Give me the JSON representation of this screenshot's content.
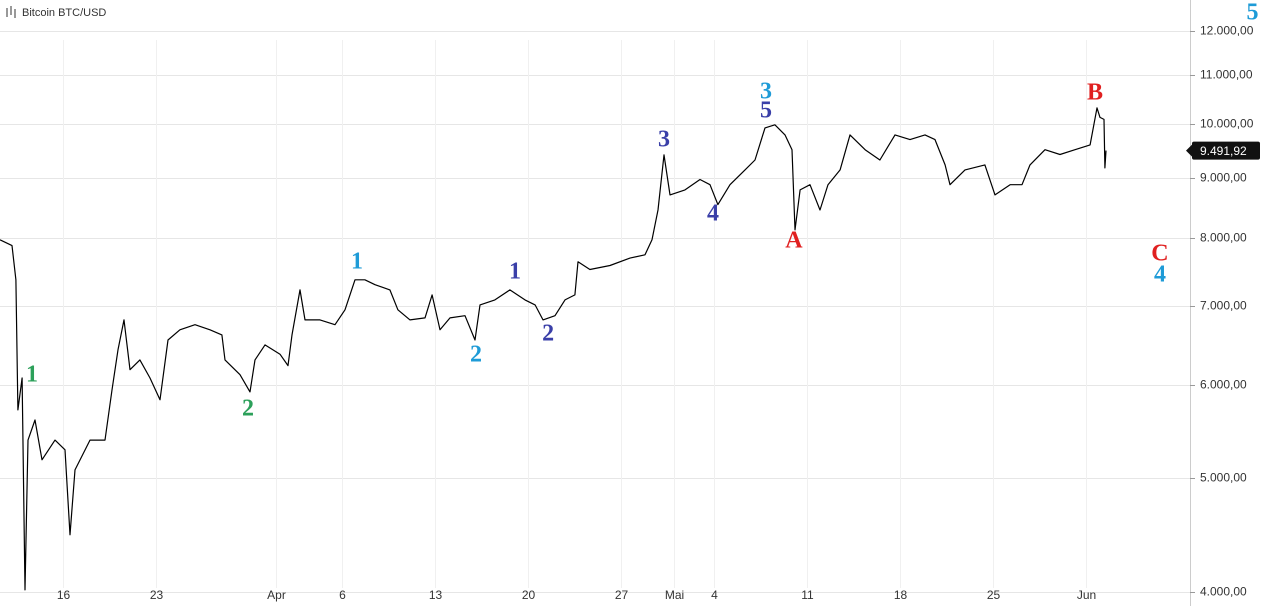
{
  "chart_data": {
    "type": "line",
    "title": "Bitcoin BTC/USD",
    "log_scale": true,
    "grid": true,
    "xlim": [
      11.26,
      100.8
    ],
    "ylim": [
      3890,
      12750
    ],
    "xticks": [
      16,
      23,
      {
        "value": 32,
        "label": "Apr"
      },
      {
        "value": 37,
        "label": "6"
      },
      {
        "value": 44,
        "label": "13"
      },
      {
        "value": 51,
        "label": "20"
      },
      {
        "value": 58,
        "label": "27"
      },
      {
        "value": 62,
        "label": "Mai"
      },
      {
        "value": 65,
        "label": "4"
      },
      {
        "value": 72,
        "label": "11"
      },
      {
        "value": 79,
        "label": "18"
      },
      {
        "value": 86,
        "label": "25"
      },
      {
        "value": 93,
        "label": "Jun"
      }
    ],
    "yticks": [
      {
        "value": 4000,
        "label": "4.000,00"
      },
      {
        "value": 5000,
        "label": "5.000,00"
      },
      {
        "value": 6000,
        "label": "6.000,00"
      },
      {
        "value": 7000,
        "label": "7.000,00"
      },
      {
        "value": 8000,
        "label": "8.000,00"
      },
      {
        "value": 9000,
        "label": "9.000,00"
      },
      {
        "value": 10000,
        "label": "10.000,00"
      },
      {
        "value": 11000,
        "label": "11.000,00"
      },
      {
        "value": 12000,
        "label": "12.000,00"
      }
    ],
    "last_price": {
      "value": 9491.92,
      "label": "9.491,92"
    },
    "series": [
      {
        "name": "Bitcoin BTC/USD",
        "color": "#000000",
        "x": [
          11.26,
          12.16,
          12.46,
          12.61,
          12.92,
          13.14,
          13.37,
          13.89,
          14.42,
          15.4,
          16.15,
          16.53,
          16.9,
          18.03,
          19.16,
          19.69,
          20.14,
          20.59,
          21.04,
          21.79,
          22.55,
          23.3,
          23.9,
          24.8,
          25.93,
          27.06,
          27.96,
          28.19,
          29.32,
          30.07,
          30.45,
          31.2,
          32.33,
          32.93,
          33.23,
          33.83,
          34.21,
          35.34,
          36.47,
          37.22,
          37.97,
          38.72,
          39.48,
          40.6,
          41.2,
          42.11,
          43.24,
          43.77,
          44.37,
          45.12,
          46.25,
          47.0,
          47.38,
          48.5,
          49.63,
          50.76,
          51.52,
          52.12,
          53.02,
          53.77,
          54.52,
          54.75,
          55.65,
          57.16,
          58.66,
          59.79,
          60.32,
          60.77,
          61.22,
          61.67,
          62.8,
          63.93,
          64.68,
          65.28,
          66.19,
          67.32,
          68.07,
          68.82,
          69.57,
          70.33,
          70.85,
          71.08,
          71.46,
          72.21,
          72.96,
          73.56,
          74.47,
          75.22,
          76.35,
          77.47,
          78.6,
          79.73,
          80.86,
          81.61,
          82.37,
          82.74,
          83.87,
          85.37,
          86.13,
          87.26,
          88.16,
          88.76,
          89.89,
          91.02,
          92.15,
          93.28,
          93.8,
          94.03,
          94.33,
          94.4,
          94.48
        ],
        "values": [
          7970,
          7880,
          7370,
          5712,
          6080,
          4015,
          5384,
          5600,
          5180,
          5384,
          5282,
          4472,
          5079,
          5384,
          5384,
          5940,
          6425,
          6813,
          6180,
          6300,
          6080,
          5826,
          6550,
          6682,
          6750,
          6682,
          6616,
          6300,
          6120,
          5917,
          6300,
          6487,
          6370,
          6230,
          6616,
          7226,
          6813,
          6813,
          6750,
          6950,
          7370,
          7370,
          7300,
          7226,
          6950,
          6813,
          6840,
          7155,
          6682,
          6840,
          6870,
          6550,
          7017,
          7085,
          7226,
          7085,
          7017,
          6813,
          6870,
          7085,
          7155,
          7635,
          7520,
          7580,
          7690,
          7740,
          7970,
          8450,
          9413,
          8704,
          8790,
          8970,
          8880,
          8540,
          8880,
          9140,
          9320,
          9924,
          9985,
          9790,
          9510,
          8127,
          8790,
          8880,
          8450,
          8880,
          9140,
          9790,
          9510,
          9320,
          9790,
          9700,
          9790,
          9700,
          9230,
          8880,
          9140,
          9230,
          8704,
          8880,
          8880,
          9230,
          9510,
          9420,
          9510,
          9600,
          10320,
          10130,
          10090,
          9176,
          9492
        ]
      }
    ],
    "annotations": [
      {
        "text": "1",
        "color": "#2ca05a",
        "x": 13.67,
        "y": 6106
      },
      {
        "text": "2",
        "color": "#2ca05a",
        "x": 29.92,
        "y": 5712
      },
      {
        "text": "1",
        "color": "#1e9bd7",
        "x": 38.12,
        "y": 7620
      },
      {
        "text": "2",
        "color": "#1e9bd7",
        "x": 47.08,
        "y": 6350
      },
      {
        "text": "1",
        "color": "#3a3fa8",
        "x": 50.01,
        "y": 7471
      },
      {
        "text": "2",
        "color": "#3a3fa8",
        "x": 52.5,
        "y": 6616
      },
      {
        "text": "3",
        "color": "#3a3fa8",
        "x": 61.22,
        "y": 9674
      },
      {
        "text": "4",
        "color": "#3a3fa8",
        "x": 64.91,
        "y": 8369
      },
      {
        "text": "3",
        "color": "#1e9bd7",
        "x": 68.9,
        "y": 10628
      },
      {
        "text": "5",
        "color": "#3a3fa8",
        "x": 68.9,
        "y": 10240
      },
      {
        "text": "A",
        "color": "#e02020",
        "x": 71.0,
        "y": 7938
      },
      {
        "text": "B",
        "color": "#e02020",
        "x": 93.65,
        "y": 10608
      },
      {
        "text": "C",
        "color": "#e02020",
        "x": 98.54,
        "y": 7740
      },
      {
        "text": "4",
        "color": "#1e9bd7",
        "x": 98.54,
        "y": 7428
      },
      {
        "text": "5",
        "color": "#1e9bd7",
        "x": 105.5,
        "y": 12407
      }
    ]
  }
}
